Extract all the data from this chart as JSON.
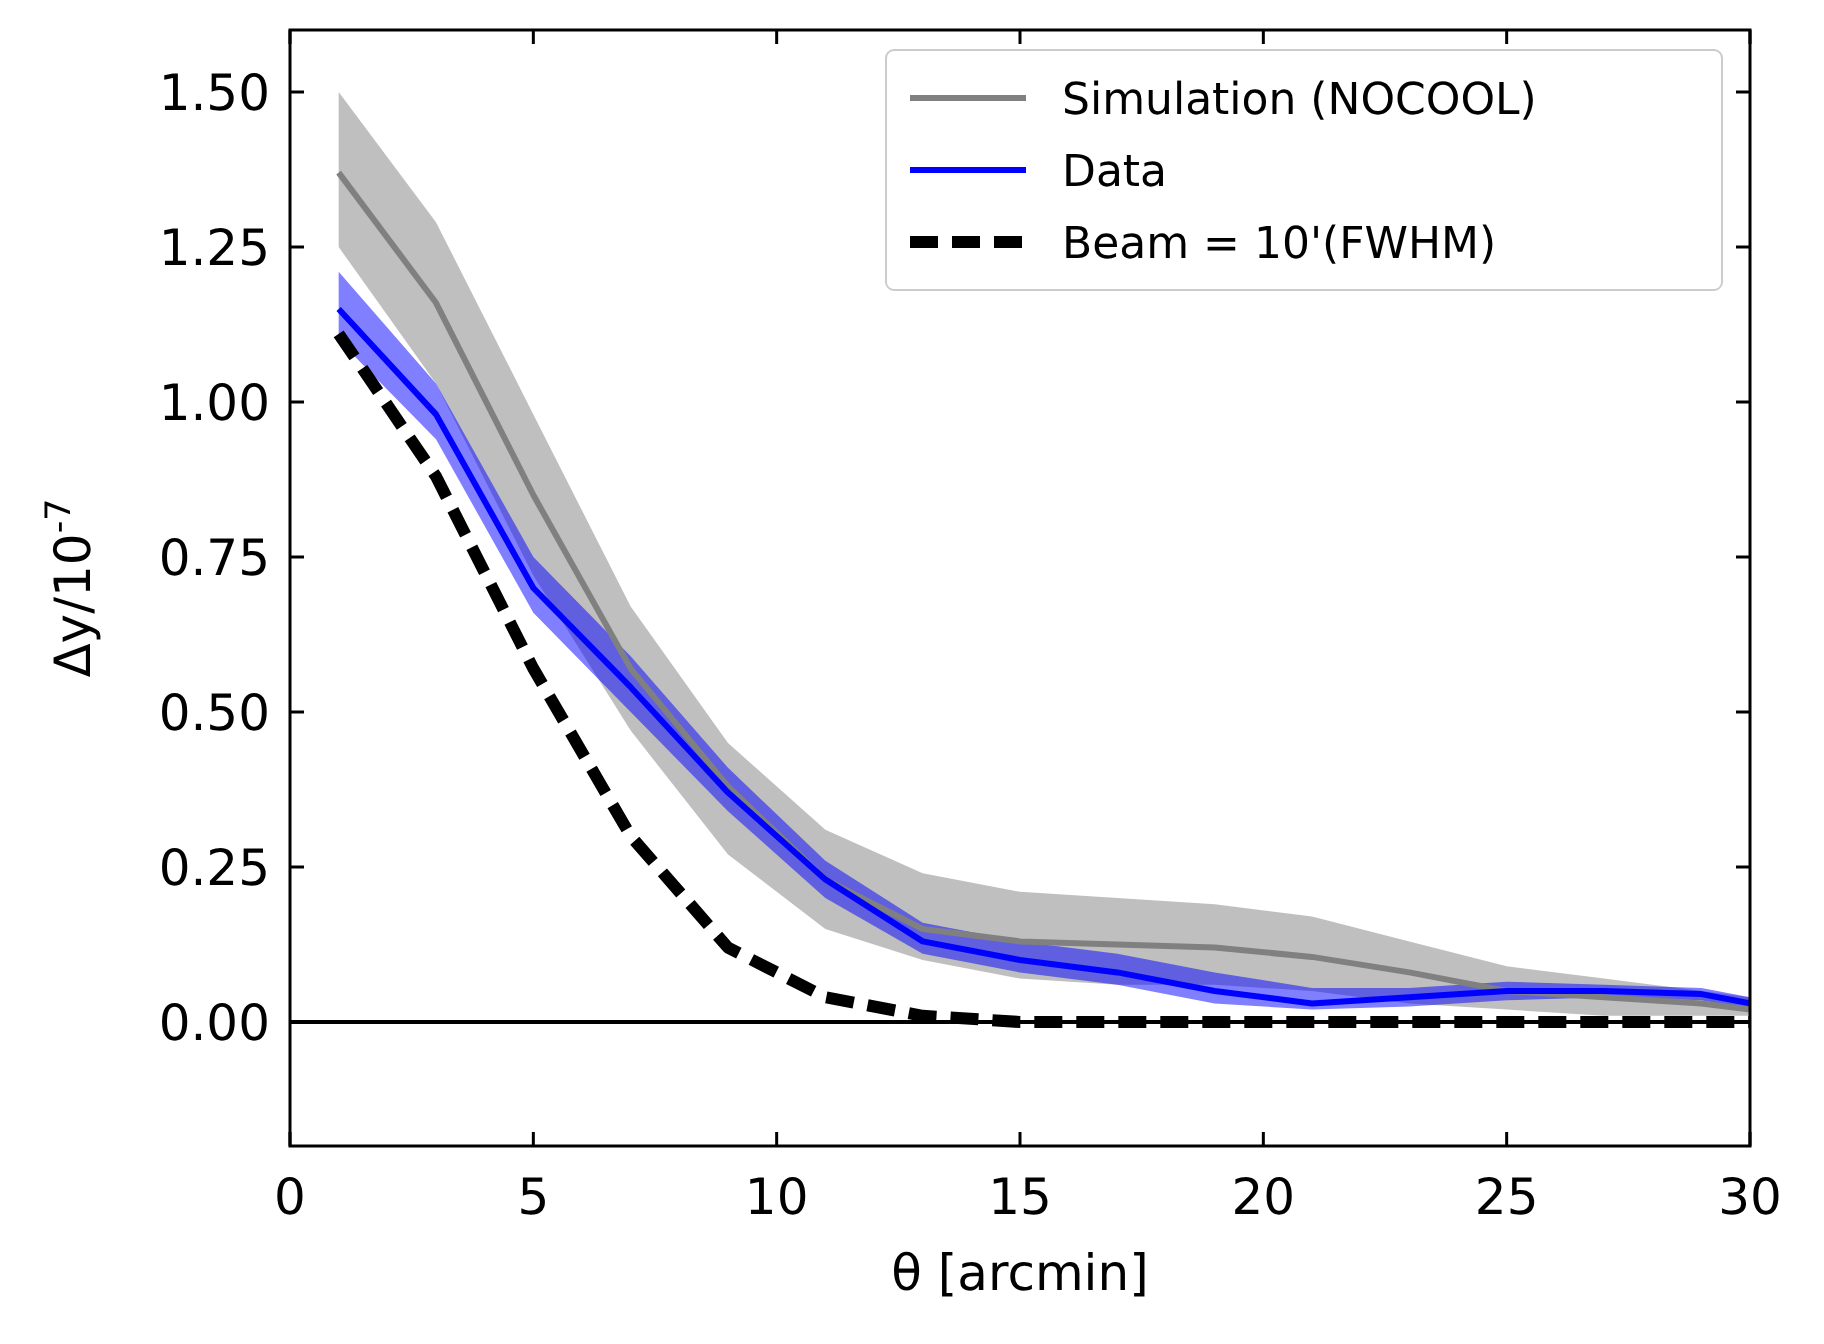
{
  "chart_data": {
    "type": "line",
    "xlabel": "θ [arcmin]",
    "ylabel": "Δy/10$^{-7}$",
    "xlim": [
      0,
      30
    ],
    "ylim": [
      -0.2,
      1.6
    ],
    "xticks": [
      0,
      5,
      10,
      15,
      20,
      25,
      30
    ],
    "yticks": [
      {
        "value": 0,
        "label": "0.00"
      },
      {
        "value": 0.25,
        "label": "0.25"
      },
      {
        "value": 0.5,
        "label": "0.50"
      },
      {
        "value": 0.75,
        "label": "0.75"
      },
      {
        "value": 1,
        "label": "1.00"
      },
      {
        "value": 1.25,
        "label": "1.25"
      },
      {
        "value": 1.5,
        "label": "1.50"
      }
    ],
    "x": [
      1,
      3,
      5,
      7,
      9,
      11,
      13,
      15,
      17,
      19,
      21,
      23,
      25,
      27,
      29,
      30
    ],
    "series": [
      {
        "name": "Simulation (NOCOOL)",
        "color": "#808080",
        "values": [
          1.37,
          1.16,
          0.85,
          0.57,
          0.38,
          0.23,
          0.15,
          0.13,
          0.125,
          0.12,
          0.105,
          0.08,
          0.05,
          0.04,
          0.03,
          0.02
        ],
        "lower": [
          1.25,
          1.03,
          0.72,
          0.47,
          0.27,
          0.15,
          0.1,
          0.07,
          0.06,
          0.06,
          0.05,
          0.03,
          0.02,
          0.01,
          0.01,
          0.01
        ],
        "upper": [
          1.5,
          1.29,
          0.98,
          0.67,
          0.45,
          0.31,
          0.24,
          0.21,
          0.2,
          0.19,
          0.17,
          0.13,
          0.09,
          0.07,
          0.05,
          0.04
        ]
      },
      {
        "name": "Data",
        "color": "#0000ff",
        "values": [
          1.15,
          0.98,
          0.7,
          0.54,
          0.37,
          0.23,
          0.13,
          0.1,
          0.08,
          0.05,
          0.03,
          0.04,
          0.05,
          0.05,
          0.045,
          0.03
        ],
        "lower": [
          1.1,
          0.94,
          0.66,
          0.5,
          0.34,
          0.2,
          0.11,
          0.08,
          0.06,
          0.03,
          0.02,
          0.025,
          0.035,
          0.04,
          0.035,
          0.02
        ],
        "upper": [
          1.21,
          1.03,
          0.75,
          0.59,
          0.41,
          0.26,
          0.16,
          0.13,
          0.11,
          0.08,
          0.055,
          0.055,
          0.065,
          0.06,
          0.055,
          0.04
        ]
      },
      {
        "name": "Beam = 10'(FWHM)",
        "color": "#000000",
        "line_style": "dashed",
        "values": [
          1.11,
          0.88,
          0.57,
          0.3,
          0.12,
          0.04,
          0.01,
          0,
          0,
          0,
          0,
          0,
          0,
          0,
          0,
          0
        ]
      }
    ],
    "ref_lines": [
      {
        "axis": "y",
        "value": 0,
        "color": "#000000"
      }
    ],
    "legend": "top right",
    "grid": false
  }
}
